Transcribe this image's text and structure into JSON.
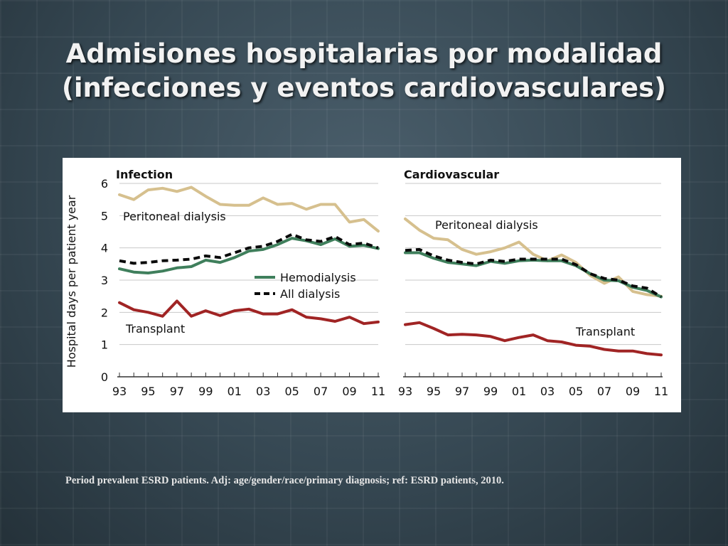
{
  "slide": {
    "title_line1": "Admisiones hospitalarias por modalidad",
    "title_line2": "(infecciones y eventos cardiovasculares)",
    "footnote": "Period prevalent ESRD patients. Adj: age/gender/race/primary diagnosis; ref: ESRD patients, 2010."
  },
  "colors": {
    "peritoneal": "#d6c08e",
    "hemodialysis": "#3f7f5c",
    "all_dialysis": "#0a0a0a",
    "transplant": "#a02424",
    "text": "#111111",
    "plot_bg": "#ffffff"
  },
  "chart_data": {
    "type": "line",
    "ylabel": "Hospital days per patient year",
    "ylim": [
      0,
      6
    ],
    "yticks": [
      0,
      1,
      2,
      3,
      4,
      5,
      6
    ],
    "xlim": [
      1993,
      2011
    ],
    "xticks": [
      "93",
      "95",
      "97",
      "99",
      "01",
      "03",
      "05",
      "07",
      "09",
      "11"
    ],
    "grid": "horizontal",
    "panels": [
      {
        "title": "Infection",
        "legend": [
          "Hemodialysis",
          "All dialysis"
        ],
        "line_labels": [
          "Peritoneal dialysis",
          "Transplant"
        ],
        "series": [
          {
            "name": "Peritoneal dialysis",
            "key": "peritoneal",
            "x": [
              1993,
              1994,
              1995,
              1996,
              1997,
              1998,
              1999,
              2000,
              2001,
              2002,
              2003,
              2004,
              2005,
              2006,
              2007,
              2008,
              2009,
              2010,
              2011
            ],
            "y": [
              5.65,
              5.5,
              5.8,
              5.85,
              5.75,
              5.88,
              5.6,
              5.35,
              5.32,
              5.32,
              5.55,
              5.35,
              5.38,
              5.2,
              5.35,
              5.35,
              4.8,
              4.88,
              4.52
            ]
          },
          {
            "name": "Hemodialysis",
            "key": "hemodialysis",
            "x": [
              1993,
              1994,
              1995,
              1996,
              1997,
              1998,
              1999,
              2000,
              2001,
              2002,
              2003,
              2004,
              2005,
              2006,
              2007,
              2008,
              2009,
              2010,
              2011
            ],
            "y": [
              3.35,
              3.25,
              3.22,
              3.28,
              3.38,
              3.42,
              3.62,
              3.55,
              3.7,
              3.9,
              3.95,
              4.1,
              4.3,
              4.22,
              4.1,
              4.28,
              4.05,
              4.08,
              3.98
            ]
          },
          {
            "name": "All dialysis",
            "key": "all_dialysis",
            "x": [
              1993,
              1994,
              1995,
              1996,
              1997,
              1998,
              1999,
              2000,
              2001,
              2002,
              2003,
              2004,
              2005,
              2006,
              2007,
              2008,
              2009,
              2010,
              2011
            ],
            "y": [
              3.6,
              3.52,
              3.55,
              3.6,
              3.62,
              3.65,
              3.75,
              3.7,
              3.85,
              4.0,
              4.05,
              4.2,
              4.42,
              4.25,
              4.2,
              4.35,
              4.1,
              4.15,
              4.0
            ]
          },
          {
            "name": "Transplant",
            "key": "transplant",
            "x": [
              1993,
              1994,
              1995,
              1996,
              1997,
              1998,
              1999,
              2000,
              2001,
              2002,
              2003,
              2004,
              2005,
              2006,
              2007,
              2008,
              2009,
              2010,
              2011
            ],
            "y": [
              2.3,
              2.08,
              2.0,
              1.88,
              2.35,
              1.88,
              2.05,
              1.9,
              2.05,
              2.1,
              1.95,
              1.95,
              2.08,
              1.85,
              1.8,
              1.72,
              1.85,
              1.65,
              1.7
            ]
          }
        ]
      },
      {
        "title": "Cardiovascular",
        "legend": [],
        "line_labels": [
          "Peritoneal dialysis",
          "Transplant"
        ],
        "series": [
          {
            "name": "Peritoneal dialysis",
            "key": "peritoneal",
            "x": [
              1993,
              1994,
              1995,
              1996,
              1997,
              1998,
              1999,
              2000,
              2001,
              2002,
              2003,
              2004,
              2005,
              2006,
              2007,
              2008,
              2009,
              2010,
              2011
            ],
            "y": [
              4.9,
              4.55,
              4.3,
              4.25,
              3.95,
              3.8,
              3.88,
              4.0,
              4.18,
              3.8,
              3.6,
              3.78,
              3.55,
              3.15,
              2.9,
              3.1,
              2.65,
              2.55,
              2.5
            ]
          },
          {
            "name": "Hemodialysis",
            "key": "hemodialysis",
            "x": [
              1993,
              1994,
              1995,
              1996,
              1997,
              1998,
              1999,
              2000,
              2001,
              2002,
              2003,
              2004,
              2005,
              2006,
              2007,
              2008,
              2009,
              2010,
              2011
            ],
            "y": [
              3.85,
              3.85,
              3.68,
              3.55,
              3.5,
              3.45,
              3.58,
              3.52,
              3.6,
              3.62,
              3.6,
              3.6,
              3.45,
              3.2,
              3.0,
              2.98,
              2.78,
              2.68,
              2.48
            ]
          },
          {
            "name": "All dialysis",
            "key": "all_dialysis",
            "x": [
              1993,
              1994,
              1995,
              1996,
              1997,
              1998,
              1999,
              2000,
              2001,
              2002,
              2003,
              2004,
              2005,
              2006,
              2007,
              2008,
              2009,
              2010,
              2011
            ],
            "y": [
              3.92,
              3.95,
              3.75,
              3.62,
              3.55,
              3.5,
              3.62,
              3.58,
              3.65,
              3.65,
              3.65,
              3.65,
              3.48,
              3.2,
              3.05,
              3.0,
              2.82,
              2.75,
              2.48
            ]
          },
          {
            "name": "Transplant",
            "key": "transplant",
            "x": [
              1993,
              1994,
              1995,
              1996,
              1997,
              1998,
              1999,
              2000,
              2001,
              2002,
              2003,
              2004,
              2005,
              2006,
              2007,
              2008,
              2009,
              2010,
              2011
            ],
            "y": [
              1.62,
              1.68,
              1.5,
              1.3,
              1.32,
              1.3,
              1.25,
              1.12,
              1.22,
              1.3,
              1.12,
              1.08,
              0.98,
              0.95,
              0.85,
              0.8,
              0.8,
              0.72,
              0.68
            ]
          }
        ]
      }
    ]
  }
}
